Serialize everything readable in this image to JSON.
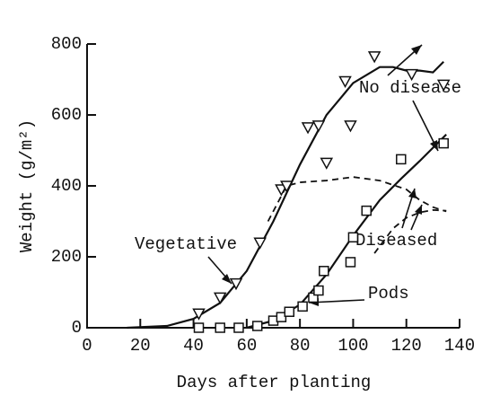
{
  "chart_data": {
    "type": "line",
    "xlabel": "Days after planting",
    "ylabel": "Weight (g/m²)",
    "xlim": [
      0,
      140
    ],
    "xticks": [
      0,
      20,
      40,
      60,
      80,
      100,
      120,
      140
    ],
    "ylim": [
      0,
      800
    ],
    "yticks": [
      0,
      200,
      400,
      600,
      800
    ],
    "color": "#111111",
    "annotations": [
      "No disease",
      "Diseased",
      "Vegetative",
      "Pods"
    ],
    "series": [
      {
        "style": "solid",
        "x": [
          15,
          30,
          40,
          50,
          60,
          70,
          80,
          90,
          100,
          110,
          115,
          120,
          125,
          130,
          134
        ],
        "values": [
          0,
          5,
          25,
          70,
          160,
          300,
          460,
          600,
          690,
          735,
          735,
          725,
          725,
          720,
          750
        ]
      },
      {
        "style": "dashed",
        "x": [
          68,
          75,
          80,
          90,
          100,
          110,
          120,
          125,
          130,
          135
        ],
        "values": [
          300,
          400,
          410,
          415,
          425,
          415,
          390,
          360,
          340,
          328
        ]
      },
      {
        "style": "solid",
        "x": [
          60,
          70,
          80,
          90,
          100,
          110,
          118,
          125,
          135
        ],
        "values": [
          0,
          20,
          65,
          150,
          260,
          360,
          420,
          470,
          545
        ]
      },
      {
        "style": "dashed",
        "x": [
          108,
          115,
          120,
          125,
          130,
          135
        ],
        "values": [
          210,
          280,
          310,
          325,
          332,
          330
        ]
      },
      {
        "style": "triangle",
        "x": [
          42,
          50,
          56,
          65,
          73,
          75,
          83,
          87,
          90,
          97,
          99,
          108,
          122,
          134
        ],
        "values": [
          40,
          85,
          125,
          240,
          390,
          400,
          565,
          570,
          465,
          695,
          570,
          765,
          715,
          685
        ]
      },
      {
        "style": "square",
        "x": [
          42,
          50,
          57,
          64,
          70,
          73,
          76,
          81,
          85,
          87,
          89,
          99,
          100,
          105,
          118,
          134
        ],
        "values": [
          0,
          0,
          0,
          5,
          20,
          30,
          45,
          60,
          85,
          105,
          160,
          185,
          255,
          330,
          475,
          520
        ]
      }
    ]
  }
}
